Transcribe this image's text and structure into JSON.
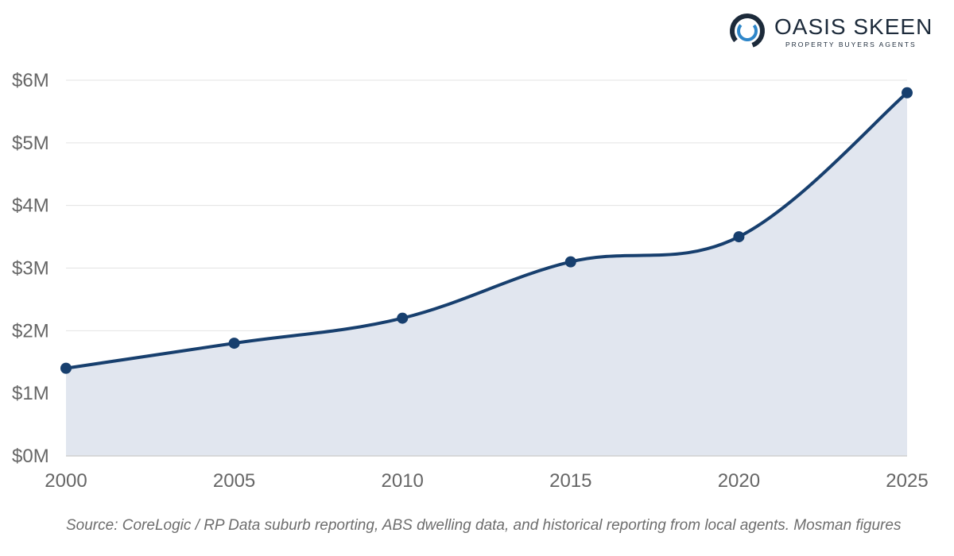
{
  "brand": {
    "name": "OASIS SKEEN",
    "tagline": "PROPERTY BUYERS AGENTS",
    "colors": {
      "navy": "#1c2a3a",
      "accent": "#2e86c9"
    }
  },
  "source_text": "Source: CoreLogic / RP Data suburb reporting, ABS dwelling data, and historical reporting from local agents. Mosman figures",
  "chart_data": {
    "type": "area",
    "x": [
      2000,
      2005,
      2010,
      2015,
      2020,
      2025
    ],
    "series": [
      {
        "values": [
          1.4,
          1.8,
          2.2,
          3.1,
          3.5,
          5.8
        ]
      }
    ],
    "unit": "millions AUD",
    "xlim": [
      2000,
      2025
    ],
    "ylim": [
      0,
      6
    ],
    "x_ticks": [
      "2000",
      "2005",
      "2010",
      "2015",
      "2020",
      "2025"
    ],
    "y_ticks": [
      "$0M",
      "$1M",
      "$2M",
      "$3M",
      "$4M",
      "$5M",
      "$6M"
    ],
    "grid": true,
    "legend": "none",
    "colors": {
      "line": "#173f6e",
      "fill": "#e1e6ef",
      "grid": "#e3e3e3"
    }
  }
}
